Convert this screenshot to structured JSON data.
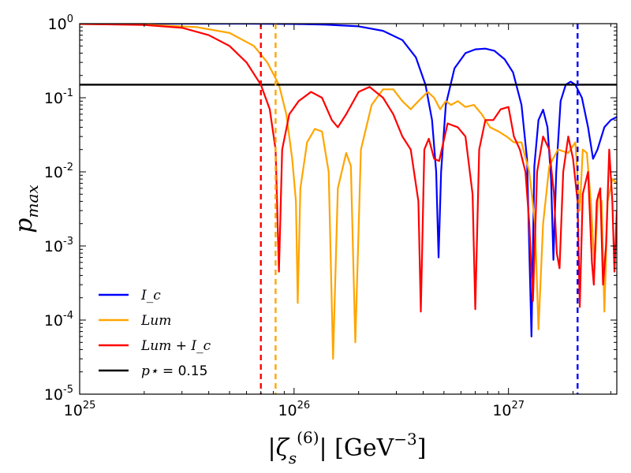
{
  "chart_data": {
    "type": "line",
    "title": "",
    "xscale": "log",
    "yscale": "log",
    "xlabel": "|ζ_s^(6)| [GeV^-3]",
    "ylabel": "p_max",
    "xlim": [
      1e+25,
      3.2e+27
    ],
    "ylim": [
      1e-05,
      1
    ],
    "x_ticks": [
      {
        "value": 1e+25,
        "base": "10",
        "exp": "25"
      },
      {
        "value": 1e+26,
        "base": "10",
        "exp": "26"
      },
      {
        "value": 1e+27,
        "base": "10",
        "exp": "27"
      }
    ],
    "y_ticks": [
      {
        "value": 1,
        "base": "10",
        "exp": "0"
      },
      {
        "value": 0.1,
        "base": "10",
        "exp": "-1"
      },
      {
        "value": 0.01,
        "base": "10",
        "exp": "-2"
      },
      {
        "value": 0.001,
        "base": "10",
        "exp": "-3"
      },
      {
        "value": 0.0001,
        "base": "10",
        "exp": "-4"
      },
      {
        "value": 1e-05,
        "base": "10",
        "exp": "-5"
      }
    ],
    "legend_position": "lower-left",
    "series": [
      {
        "name": "Ic",
        "label": "I_c",
        "color": "#0000ff",
        "points": [
          [
            1e+25,
            1.0
          ],
          [
            3e+25,
            0.999
          ],
          [
            6e+25,
            0.998
          ],
          [
            1e+26,
            0.99
          ],
          [
            1.4e+26,
            0.97
          ],
          [
            2e+26,
            0.92
          ],
          [
            2.6e+26,
            0.8
          ],
          [
            3.2e+26,
            0.6
          ],
          [
            3.7e+26,
            0.35
          ],
          [
            4.1e+26,
            0.15
          ],
          [
            4.4e+26,
            0.05
          ],
          [
            4.6e+26,
            0.01
          ],
          [
            4.72e+26,
            0.0007
          ],
          [
            4.85e+26,
            0.01
          ],
          [
            5.1e+26,
            0.08
          ],
          [
            5.6e+26,
            0.25
          ],
          [
            6.3e+26,
            0.4
          ],
          [
            7e+26,
            0.45
          ],
          [
            7.8e+26,
            0.46
          ],
          [
            8.6e+26,
            0.43
          ],
          [
            9.6e+26,
            0.33
          ],
          [
            1.05e+27,
            0.22
          ],
          [
            1.15e+27,
            0.08
          ],
          [
            1.22e+27,
            0.015
          ],
          [
            1.28e+27,
            6e-05
          ],
          [
            1.32e+27,
            0.012
          ],
          [
            1.38e+27,
            0.05
          ],
          [
            1.45e+27,
            0.069
          ],
          [
            1.52e+27,
            0.04
          ],
          [
            1.58e+27,
            0.008
          ],
          [
            1.62e+27,
            0.00065
          ],
          [
            1.67e+27,
            0.01
          ],
          [
            1.75e+27,
            0.09
          ],
          [
            1.85e+27,
            0.15
          ],
          [
            1.95e+27,
            0.165
          ],
          [
            2.05e+27,
            0.15
          ],
          [
            2.2e+27,
            0.1
          ],
          [
            2.35e+27,
            0.04
          ],
          [
            2.48e+27,
            0.015
          ],
          [
            2.6e+27,
            0.02
          ],
          [
            2.8e+27,
            0.04
          ],
          [
            3e+27,
            0.05
          ],
          [
            3.2e+27,
            0.055
          ]
        ]
      },
      {
        "name": "Lum",
        "label": "Lum",
        "color": "#ffa500",
        "points": [
          [
            1e+25,
            0.99
          ],
          [
            2e+25,
            0.97
          ],
          [
            3.5e+25,
            0.9
          ],
          [
            5e+25,
            0.75
          ],
          [
            6.5e+25,
            0.5
          ],
          [
            7.5e+25,
            0.3
          ],
          [
            8.5e+25,
            0.15
          ],
          [
            9.2e+25,
            0.06
          ],
          [
            9.8e+25,
            0.015
          ],
          [
            1.02e+26,
            0.004
          ],
          [
            1.04e+26,
            0.00017
          ],
          [
            1.07e+26,
            0.006
          ],
          [
            1.15e+26,
            0.025
          ],
          [
            1.25e+26,
            0.038
          ],
          [
            1.35e+26,
            0.035
          ],
          [
            1.45e+26,
            0.01
          ],
          [
            1.52e+26,
            3e-05
          ],
          [
            1.6e+26,
            0.006
          ],
          [
            1.75e+26,
            0.018
          ],
          [
            1.84e+26,
            0.012
          ],
          [
            1.93e+26,
            5e-05
          ],
          [
            2.05e+26,
            0.02
          ],
          [
            2.3e+26,
            0.08
          ],
          [
            2.6e+26,
            0.13
          ],
          [
            2.9e+26,
            0.13
          ],
          [
            3.2e+26,
            0.09
          ],
          [
            3.5e+26,
            0.07
          ],
          [
            3.8e+26,
            0.09
          ],
          [
            4.2e+26,
            0.12
          ],
          [
            4.5e+26,
            0.1
          ],
          [
            4.8e+26,
            0.07
          ],
          [
            5.1e+26,
            0.09
          ],
          [
            5.4e+26,
            0.08
          ],
          [
            5.8e+26,
            0.09
          ],
          [
            6.3e+26,
            0.075
          ],
          [
            6.9e+26,
            0.08
          ],
          [
            7.5e+26,
            0.06
          ],
          [
            8.2e+26,
            0.04
          ],
          [
            9e+26,
            0.035
          ],
          [
            9.8e+26,
            0.03
          ],
          [
            1.06e+27,
            0.025
          ],
          [
            1.15e+27,
            0.025
          ],
          [
            1.25e+27,
            0.01
          ],
          [
            1.33e+27,
            0.002
          ],
          [
            1.38e+27,
            7.5e-05
          ],
          [
            1.45e+27,
            0.002
          ],
          [
            1.55e+27,
            0.012
          ],
          [
            1.7e+27,
            0.02
          ],
          [
            1.9e+27,
            0.018
          ],
          [
            2.05e+27,
            0.025
          ],
          [
            2.15e+27,
            0.003
          ],
          [
            2.22e+27,
            0.02
          ],
          [
            2.32e+27,
            0.018
          ],
          [
            2.42e+27,
            0.004
          ],
          [
            2.52e+27,
            0.0005
          ],
          [
            2.62e+27,
            0.005
          ],
          [
            2.72e+27,
            0.004
          ],
          [
            2.8e+27,
            0.00013
          ],
          [
            2.9e+27,
            0.004
          ],
          [
            3.05e+27,
            0.008
          ],
          [
            3.2e+27,
            0.007
          ]
        ]
      },
      {
        "name": "Lum+Ic",
        "label": "Lum + I_c",
        "color": "#ff0000",
        "points": [
          [
            1e+25,
            0.99
          ],
          [
            2e+25,
            0.96
          ],
          [
            3e+25,
            0.88
          ],
          [
            4e+25,
            0.7
          ],
          [
            5e+25,
            0.5
          ],
          [
            6e+25,
            0.3
          ],
          [
            7e+25,
            0.15
          ],
          [
            7.7e+25,
            0.07
          ],
          [
            8.2e+25,
            0.02
          ],
          [
            8.5e+25,
            0.00045
          ],
          [
            8.8e+25,
            0.02
          ],
          [
            9.5e+25,
            0.06
          ],
          [
            1.05e+26,
            0.09
          ],
          [
            1.2e+26,
            0.12
          ],
          [
            1.35e+26,
            0.1
          ],
          [
            1.5e+26,
            0.05
          ],
          [
            1.6e+26,
            0.04
          ],
          [
            1.75e+26,
            0.06
          ],
          [
            2e+26,
            0.12
          ],
          [
            2.25e+26,
            0.14
          ],
          [
            2.6e+26,
            0.1
          ],
          [
            2.9e+26,
            0.06
          ],
          [
            3.2e+26,
            0.03
          ],
          [
            3.5e+26,
            0.02
          ],
          [
            3.8e+26,
            0.004
          ],
          [
            3.9e+26,
            0.00013
          ],
          [
            4.05e+26,
            0.02
          ],
          [
            4.25e+26,
            0.028
          ],
          [
            4.5e+26,
            0.015
          ],
          [
            4.75e+26,
            0.014
          ],
          [
            5.2e+26,
            0.045
          ],
          [
            5.8e+26,
            0.04
          ],
          [
            6.3e+26,
            0.03
          ],
          [
            6.8e+26,
            0.005
          ],
          [
            7e+26,
            0.00014
          ],
          [
            7.3e+26,
            0.02
          ],
          [
            7.8e+26,
            0.05
          ],
          [
            8.5e+26,
            0.05
          ],
          [
            9.2e+26,
            0.07
          ],
          [
            1e+27,
            0.075
          ],
          [
            1.06e+27,
            0.03
          ],
          [
            1.13e+27,
            0.02
          ],
          [
            1.2e+27,
            0.01
          ],
          [
            1.25e+27,
            0.002
          ],
          [
            1.3e+27,
            0.00018
          ],
          [
            1.36e+27,
            0.01
          ],
          [
            1.45e+27,
            0.03
          ],
          [
            1.55e+27,
            0.02
          ],
          [
            1.63e+27,
            0.005
          ],
          [
            1.68e+27,
            0.0008
          ],
          [
            1.73e+27,
            0.0005
          ],
          [
            1.8e+27,
            0.01
          ],
          [
            1.9e+27,
            0.03
          ],
          [
            2e+27,
            0.015
          ],
          [
            2.1e+27,
            0.004
          ],
          [
            2.15e+27,
            0.00015
          ],
          [
            2.22e+27,
            0.005
          ],
          [
            2.35e+27,
            0.01
          ],
          [
            2.45e+27,
            0.0006
          ],
          [
            2.5e+27,
            0.0003
          ],
          [
            2.58e+27,
            0.004
          ],
          [
            2.68e+27,
            0.006
          ],
          [
            2.76e+27,
            0.0003
          ],
          [
            2.85e+27,
            0.001
          ],
          [
            2.95e+27,
            0.02
          ],
          [
            3.05e+27,
            0.004
          ],
          [
            3.12e+27,
            0.00045
          ],
          [
            3.2e+27,
            0.003
          ]
        ]
      },
      {
        "name": "p_star",
        "label": "p⋆ = 0.15",
        "label_symbol": "p⋆",
        "label_value": " = 0.15",
        "color": "#000000",
        "value": 0.15
      }
    ],
    "vertical_lines": [
      {
        "x": 7e+25,
        "color": "#ff0000",
        "style": "dashed"
      },
      {
        "x": 8.2e+25,
        "color": "#ffa500",
        "style": "dashed"
      },
      {
        "x": 2.1e+27,
        "color": "#0000ff",
        "style": "dashed"
      }
    ]
  }
}
